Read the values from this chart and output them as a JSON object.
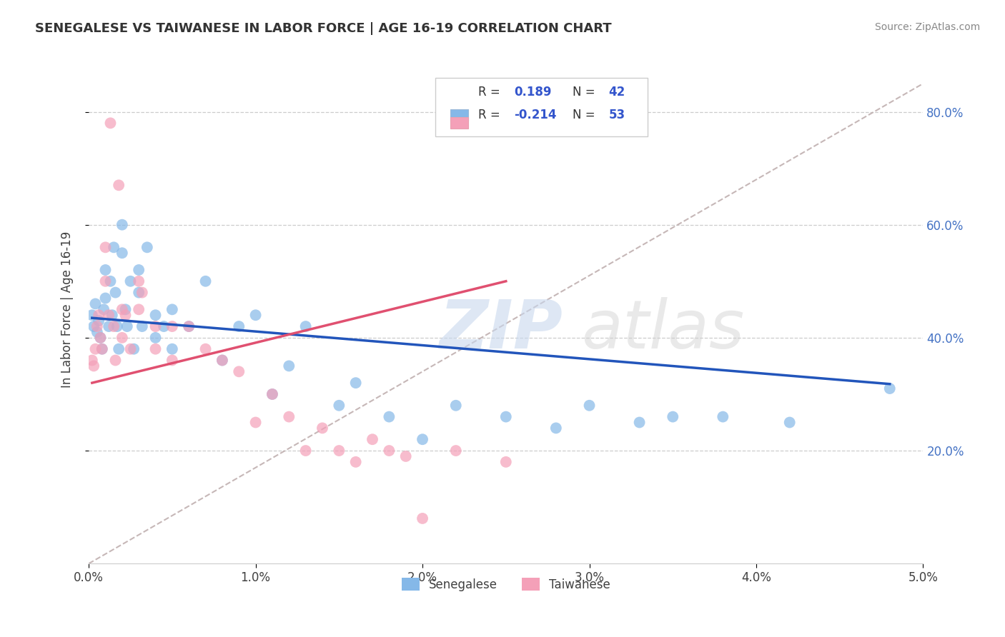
{
  "title": "SENEGALESE VS TAIWANESE IN LABOR FORCE | AGE 16-19 CORRELATION CHART",
  "source": "Source: ZipAtlas.com",
  "ylabel": "In Labor Force | Age 16-19",
  "xlim": [
    0.0,
    0.05
  ],
  "ylim": [
    0.0,
    0.9
  ],
  "xtick_labels": [
    "0.0%",
    "1.0%",
    "2.0%",
    "3.0%",
    "4.0%",
    "5.0%"
  ],
  "xtick_vals": [
    0.0,
    0.01,
    0.02,
    0.03,
    0.04,
    0.05
  ],
  "ytick_labels": [
    "20.0%",
    "40.0%",
    "60.0%",
    "80.0%"
  ],
  "ytick_vals": [
    0.2,
    0.4,
    0.6,
    0.8
  ],
  "senegalese_color": "#85b8e8",
  "taiwanese_color": "#f4a0b8",
  "senegalese_line_color": "#2255bb",
  "taiwanese_line_color": "#e05070",
  "diagonal_color": "#c0b0b0",
  "background_color": "#ffffff",
  "senegalese_x": [
    0.0002,
    0.0003,
    0.0004,
    0.0005,
    0.0006,
    0.0007,
    0.0008,
    0.0009,
    0.001,
    0.001,
    0.0012,
    0.0013,
    0.0014,
    0.0015,
    0.0016,
    0.0017,
    0.0018,
    0.002,
    0.002,
    0.0022,
    0.0023,
    0.0025,
    0.0027,
    0.003,
    0.003,
    0.0032,
    0.0035,
    0.004,
    0.004,
    0.0045,
    0.005,
    0.005,
    0.006,
    0.007,
    0.008,
    0.009,
    0.01,
    0.011,
    0.012,
    0.013,
    0.015,
    0.016,
    0.018,
    0.02,
    0.022,
    0.025,
    0.028,
    0.03,
    0.033,
    0.035,
    0.038,
    0.042,
    0.048
  ],
  "senegalese_y": [
    0.44,
    0.42,
    0.46,
    0.41,
    0.43,
    0.4,
    0.38,
    0.45,
    0.52,
    0.47,
    0.42,
    0.5,
    0.44,
    0.56,
    0.48,
    0.42,
    0.38,
    0.6,
    0.55,
    0.45,
    0.42,
    0.5,
    0.38,
    0.52,
    0.48,
    0.42,
    0.56,
    0.44,
    0.4,
    0.42,
    0.45,
    0.38,
    0.42,
    0.5,
    0.36,
    0.42,
    0.44,
    0.3,
    0.35,
    0.42,
    0.28,
    0.32,
    0.26,
    0.22,
    0.28,
    0.26,
    0.24,
    0.28,
    0.25,
    0.26,
    0.26,
    0.25,
    0.31
  ],
  "taiwanese_x": [
    0.0002,
    0.0003,
    0.0004,
    0.0005,
    0.0006,
    0.0007,
    0.0008,
    0.001,
    0.001,
    0.0012,
    0.0013,
    0.0015,
    0.0016,
    0.0018,
    0.002,
    0.002,
    0.0022,
    0.0025,
    0.003,
    0.003,
    0.0032,
    0.004,
    0.004,
    0.005,
    0.005,
    0.006,
    0.007,
    0.008,
    0.009,
    0.01,
    0.011,
    0.012,
    0.013,
    0.014,
    0.015,
    0.016,
    0.017,
    0.018,
    0.019,
    0.02,
    0.022,
    0.025
  ],
  "taiwanese_y": [
    0.36,
    0.35,
    0.38,
    0.42,
    0.44,
    0.4,
    0.38,
    0.56,
    0.5,
    0.44,
    0.78,
    0.42,
    0.36,
    0.67,
    0.45,
    0.4,
    0.44,
    0.38,
    0.5,
    0.45,
    0.48,
    0.42,
    0.38,
    0.42,
    0.36,
    0.42,
    0.38,
    0.36,
    0.34,
    0.25,
    0.3,
    0.26,
    0.2,
    0.24,
    0.2,
    0.18,
    0.22,
    0.2,
    0.19,
    0.08,
    0.2,
    0.18
  ],
  "senegalese_tline_x": [
    0.0002,
    0.048
  ],
  "senegalese_tline_y": [
    0.435,
    0.318
  ],
  "taiwanese_tline_x": [
    0.0002,
    0.025
  ],
  "taiwanese_tline_y": [
    0.32,
    0.5
  ]
}
